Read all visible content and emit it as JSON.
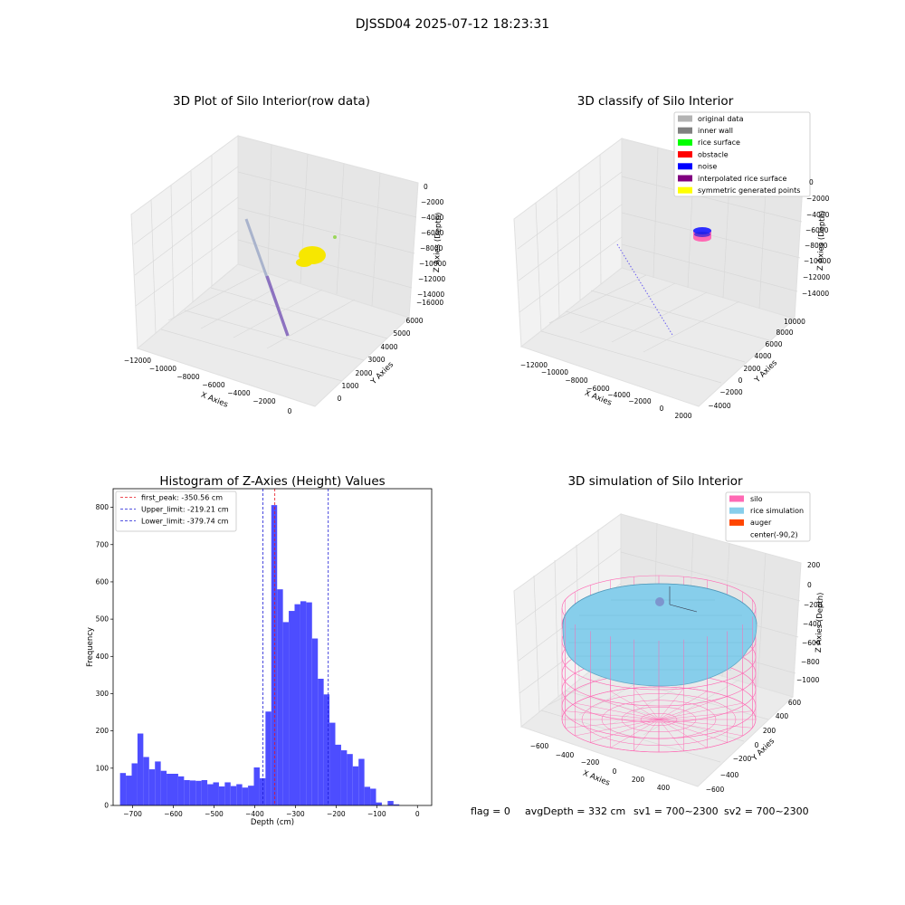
{
  "figure": {
    "suptitle": "DJSSD04 2025-07-12 18:23:31"
  },
  "colors": {
    "grey_pane": "#f2f2f2",
    "pane_grid": "#d9d9d9",
    "hist_bar": "#4d4dff",
    "first_peak_line": "#e8131e",
    "limit_line": "#1b1bd6",
    "silo": "#ff69b4",
    "rice_simulation": "#87ceeb",
    "auger": "#ff4500",
    "yellow_points": "#f7e700",
    "purple_points": "#8f7fc6"
  },
  "panel_tl": {
    "title": "3D Plot of Silo Interior(row data)",
    "xlabel": "X Axies",
    "ylabel": "Y Axies",
    "zlabel": "Z Axies (Depth)",
    "xticks": [
      "−12000",
      "−10000",
      "−8000",
      "−6000",
      "−4000",
      "−2000",
      "0"
    ],
    "yticks": [
      "0",
      "1000",
      "2000",
      "3000",
      "4000",
      "5000",
      "6000"
    ],
    "zticks": [
      "0",
      "−2000",
      "−4000",
      "−6000",
      "−8000",
      "−10000",
      "−12000",
      "−14000",
      "−16000"
    ]
  },
  "panel_tr": {
    "title": "3D classify of Silo Interior",
    "xlabel": "X Axies",
    "ylabel": "Y Axies",
    "zlabel": "Z Axies (Depth)",
    "xticks": [
      "−12000",
      "−10000",
      "−8000",
      "−6000",
      "−4000",
      "−2000",
      "0",
      "2000"
    ],
    "yticks": [
      "−4000",
      "−2000",
      "0",
      "2000",
      "4000",
      "6000",
      "8000",
      "10000"
    ],
    "zticks": [
      "0",
      "−2000",
      "−4000",
      "−6000",
      "−8000",
      "−10000",
      "−12000",
      "−14000"
    ],
    "legend": [
      {
        "label": "original data",
        "color": "#b3b3b3"
      },
      {
        "label": "inner wall",
        "color": "#808080"
      },
      {
        "label": "rice surface",
        "color": "#00ff00"
      },
      {
        "label": "obstacle",
        "color": "#ff0000"
      },
      {
        "label": "noise",
        "color": "#0000ff"
      },
      {
        "label": "interpolated rice surface",
        "color": "#800080"
      },
      {
        "label": "symmetric generated points",
        "color": "#ffff00"
      }
    ]
  },
  "panel_br": {
    "title": "3D simulation of Silo Interior",
    "xlabel": "X Axies",
    "ylabel": "Y Axies",
    "zlabel": "Z Axies (Depth)",
    "xticks": [
      "−600",
      "−400",
      "−200",
      "0",
      "200",
      "400"
    ],
    "yticks": [
      "−600",
      "−400",
      "−200",
      "0",
      "200",
      "400",
      "600"
    ],
    "zticks": [
      "200",
      "0",
      "−200",
      "−400",
      "−600",
      "−800",
      "−1000"
    ],
    "legend": [
      {
        "label": "silo",
        "color": "#ff69b4"
      },
      {
        "label": "rice simulation",
        "color": "#87ceeb"
      },
      {
        "label": "auger",
        "color": "#ff4500"
      },
      {
        "label": "center(-90,2)",
        "color": ""
      }
    ]
  },
  "status_line": {
    "flag": "flag = 0",
    "avg": "avgDepth = 332 cm",
    "sv1": "sv1 = 700~2300",
    "sv2": "sv2 = 700~2300"
  },
  "chart_data": [
    {
      "type": "histogram",
      "title": "Histogram of Z-Axies (Height) Values",
      "xlabel": "Depth (cm)",
      "ylabel": "Frequency",
      "xlim": [
        -748,
        35
      ],
      "ylim": [
        0,
        850
      ],
      "xticks": [
        -700,
        -600,
        -500,
        -400,
        -300,
        -200,
        -100,
        0
      ],
      "yticks": [
        0,
        100,
        200,
        300,
        400,
        500,
        600,
        700,
        800
      ],
      "bin_start": -731,
      "bin_width": 14.3,
      "counts": [
        87,
        80,
        113,
        193,
        130,
        97,
        118,
        93,
        85,
        85,
        78,
        68,
        67,
        66,
        68,
        57,
        62,
        51,
        62,
        52,
        57,
        48,
        53,
        102,
        73,
        252,
        806,
        580,
        492,
        522,
        540,
        548,
        545,
        448,
        340,
        298,
        222,
        163,
        148,
        138,
        105,
        125,
        50,
        45,
        8,
        0,
        12,
        3
      ],
      "vlines": [
        {
          "x": -350.56,
          "label": "first_peak: -350.56 cm",
          "color": "#e8131e"
        },
        {
          "x": -219.21,
          "label": "Upper_limit: -219.21 cm",
          "color": "#1b1bd6"
        },
        {
          "x": -379.74,
          "label": "Lower_limit: -379.74 cm",
          "color": "#1b1bd6"
        }
      ],
      "legend_position": "upper left"
    }
  ]
}
